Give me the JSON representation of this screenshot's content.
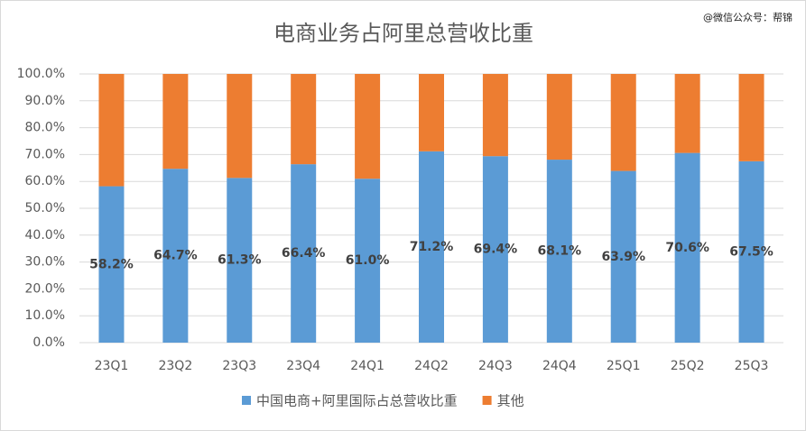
{
  "chart_data": {
    "type": "stacked_bar",
    "title": "电商业务占阿里总营收比重",
    "annotation": "@微信公众号：帮锦",
    "categories": [
      "23Q1",
      "23Q2",
      "23Q3",
      "23Q4",
      "24Q1",
      "24Q2",
      "24Q3",
      "24Q4",
      "25Q1",
      "25Q2",
      "25Q3"
    ],
    "series": [
      {
        "name": "中国电商+阿里国际占总营收比重",
        "color": "#5b9bd5",
        "values": [
          58.2,
          64.7,
          61.3,
          66.4,
          61.0,
          71.2,
          69.4,
          68.1,
          63.9,
          70.6,
          67.5
        ],
        "value_labels": [
          "58.2%",
          "64.7%",
          "61.3%",
          "66.4%",
          "61.0%",
          "71.2%",
          "69.4%",
          "68.1%",
          "63.9%",
          "70.6%",
          "67.5%"
        ]
      },
      {
        "name": "其他",
        "color": "#ed7d31",
        "values": [
          41.8,
          35.3,
          38.7,
          33.6,
          39.0,
          28.8,
          30.6,
          31.9,
          36.1,
          29.4,
          32.5
        ]
      }
    ],
    "ylim": [
      0,
      100
    ],
    "yticks": [
      {
        "value": 0,
        "label": "0.0%"
      },
      {
        "value": 10,
        "label": "10.0%"
      },
      {
        "value": 20,
        "label": "20.0%"
      },
      {
        "value": 30,
        "label": "30.0%"
      },
      {
        "value": 40,
        "label": "40.0%"
      },
      {
        "value": 50,
        "label": "50.0%"
      },
      {
        "value": 60,
        "label": "60.0%"
      },
      {
        "value": 70,
        "label": "70.0%"
      },
      {
        "value": 80,
        "label": "80.0%"
      },
      {
        "value": 90,
        "label": "90.0%"
      },
      {
        "value": 100,
        "label": "100.0%"
      }
    ],
    "grid": true,
    "legend": "bottom"
  }
}
